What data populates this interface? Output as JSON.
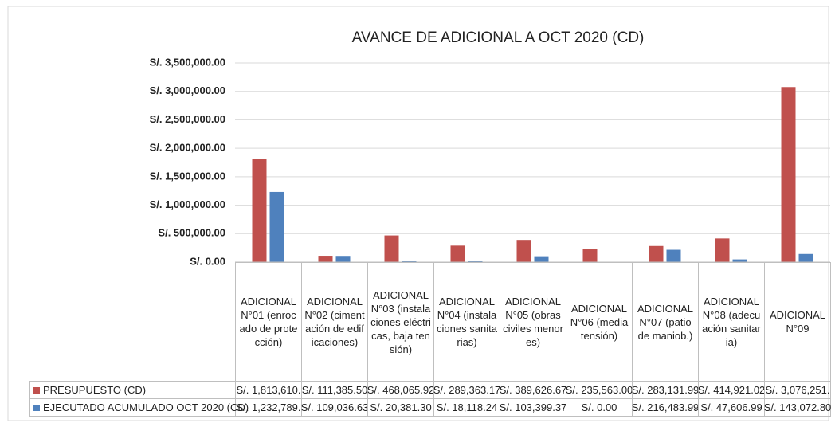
{
  "chart_data": {
    "type": "bar",
    "title": "AVANCE DE ADICIONAL A OCT 2020  (CD)",
    "categories": [
      "ADICIONAL N°01 (enrocado de protección)",
      "ADICIONAL N°02 (cimentación de edificaciones)",
      "ADICIONAL N°03 (instalaciones eléctricas, baja tensión)",
      "ADICIONAL N°04 (instalaciones sanitarias)",
      "ADICIONAL N°05 (obras civiles menores)",
      "ADICIONAL N°06 (media tensión)",
      "ADICIONAL N°07 (patio de maniob.)",
      "ADICIONAL N°08 (adecuación sanitaria)",
      "ADICIONAL N°09"
    ],
    "series": [
      {
        "name": "PRESUPUESTO (CD)",
        "color": "#c0504d",
        "values": [
          1813610,
          111385.5,
          468065.92,
          289363.17,
          389626.67,
          235563.0,
          283131.99,
          414921.02,
          3076251
        ],
        "value_labels": [
          "S/. 1,813,610.",
          "S/. 111,385.50",
          "S/. 468,065.92",
          "S/. 289,363.17",
          "S/. 389,626.67",
          "S/. 235,563.00",
          "S/. 283,131.99",
          "S/. 414,921.02",
          "S/. 3,076,251."
        ]
      },
      {
        "name": "EJECUTADO ACUMULADO OCT 2020 (CD)",
        "color": "#4f81bd",
        "values": [
          1232789,
          109036.63,
          20381.3,
          18118.24,
          103399.37,
          0.0,
          216483.99,
          47606.99,
          143072.8
        ],
        "value_labels": [
          "S/. 1,232,789.",
          "S/. 109,036.63",
          "S/. 20,381.30",
          "S/. 18,118.24",
          "S/. 103,399.37",
          "S/. 0.00",
          "S/. 216,483.99",
          "S/. 47,606.99",
          "S/. 143,072.80"
        ]
      }
    ],
    "ylim": [
      0,
      3500000
    ],
    "yticks": [
      {
        "value": 0,
        "label": "S/. 0.00"
      },
      {
        "value": 500000,
        "label": "S/. 500,000.00"
      },
      {
        "value": 1000000,
        "label": "S/. 1,000,000.00"
      },
      {
        "value": 1500000,
        "label": "S/. 1,500,000.00"
      },
      {
        "value": 2000000,
        "label": "S/. 2,000,000.00"
      },
      {
        "value": 2500000,
        "label": "S/. 2,500,000.00"
      },
      {
        "value": 3000000,
        "label": "S/. 3,000,000.00"
      },
      {
        "value": 3500000,
        "label": "S/. 3,500,000.00"
      }
    ],
    "grid": true
  }
}
